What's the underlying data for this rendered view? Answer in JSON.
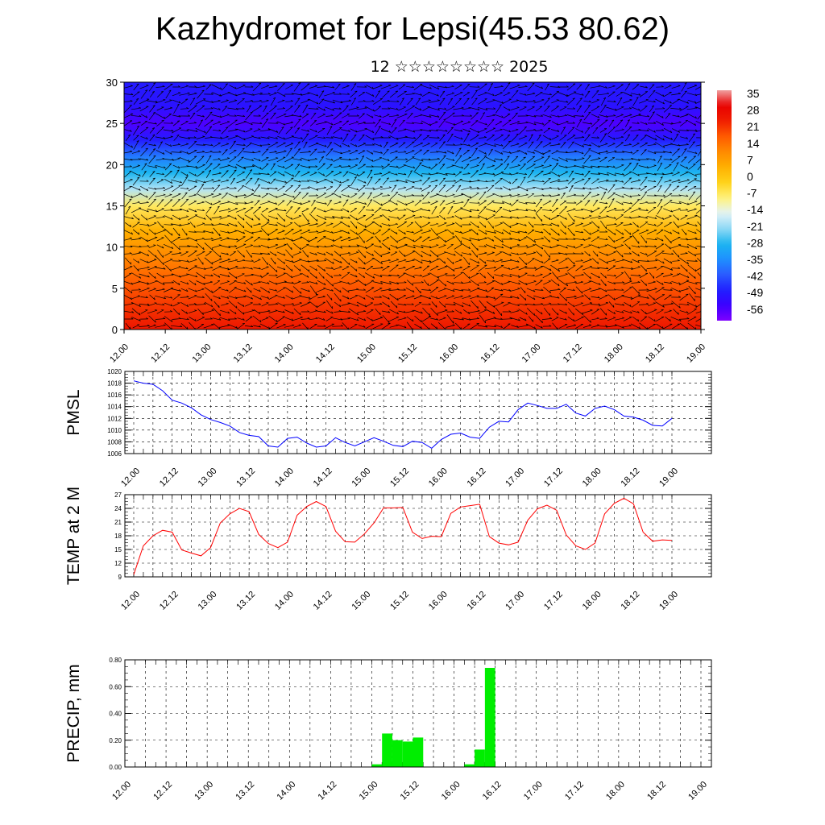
{
  "header": {
    "title": "Kazhydromet for Lepsi(45.53 80.62)",
    "subtitle": "12 ☆☆☆☆☆☆☆☆ 2025"
  },
  "colors": {
    "pmsl_line": "#0000ff",
    "temp_line": "#ff0000",
    "precip_bar": "#00ee00",
    "grid": "#000000",
    "wind_arrows": "#000000"
  },
  "chart_data": [
    {
      "id": "temperature_profile",
      "type": "heatmap",
      "description_fill": "temperature cross-section with wind vectors",
      "y_ticks": [
        "0",
        "5",
        "10",
        "15",
        "20",
        "25",
        "30"
      ],
      "ylim": [
        0,
        30
      ],
      "x_ticks": [
        "12.00",
        "12.12",
        "13.00",
        "13.12",
        "14.00",
        "14.12",
        "15.00",
        "15.12",
        "16.00",
        "16.12",
        "17.00",
        "17.12",
        "18.00",
        "18.12",
        "19.00"
      ],
      "colorbar_labels": [
        "35",
        "28",
        "21",
        "14",
        "7",
        "0",
        "-7",
        "-14",
        "-21",
        "-28",
        "-35",
        "-42",
        "-49",
        "-56"
      ],
      "colorbar_range": [
        -63,
        42
      ],
      "profile": [
        {
          "level": 0,
          "temp": 30
        },
        {
          "level": 3,
          "temp": 25
        },
        {
          "level": 6,
          "temp": 20
        },
        {
          "level": 9,
          "temp": 14
        },
        {
          "level": 12,
          "temp": 7
        },
        {
          "level": 15,
          "temp": -5
        },
        {
          "level": 17,
          "temp": -18
        },
        {
          "level": 19,
          "temp": -28
        },
        {
          "level": 21,
          "temp": -38
        },
        {
          "level": 23,
          "temp": -50
        },
        {
          "level": 25,
          "temp": -58
        },
        {
          "level": 27,
          "temp": -52
        },
        {
          "level": 30,
          "temp": -50
        }
      ]
    },
    {
      "id": "pmsl",
      "type": "line",
      "ylabel": "PMSL",
      "ylim": [
        1006,
        1020
      ],
      "y_ticks": [
        "1020",
        "1018",
        "1016",
        "1014",
        "1012",
        "1010",
        "1008",
        "1006"
      ],
      "x_ticks": [
        "12.00",
        "12.12",
        "13.00",
        "13.12",
        "14.00",
        "14.12",
        "15.00",
        "15.12",
        "16.00",
        "16.12",
        "17.00",
        "17.12",
        "18.00",
        "18.12",
        "19.00"
      ],
      "x_step_hours": 3,
      "values": [
        1018.4,
        1018.0,
        1017.8,
        1016.7,
        1015.1,
        1014.6,
        1013.8,
        1012.6,
        1011.8,
        1011.3,
        1010.7,
        1009.6,
        1009.1,
        1008.9,
        1007.3,
        1007.1,
        1008.6,
        1008.8,
        1007.8,
        1007.1,
        1007.3,
        1008.7,
        1007.9,
        1007.3,
        1008.0,
        1008.7,
        1008.1,
        1007.4,
        1007.2,
        1008.1,
        1007.9,
        1006.9,
        1008.4,
        1009.3,
        1009.5,
        1008.8,
        1008.6,
        1010.5,
        1011.5,
        1011.4,
        1013.5,
        1014.6,
        1014.2,
        1013.7,
        1013.7,
        1014.4,
        1012.9,
        1012.4,
        1013.7,
        1014.1,
        1013.5,
        1012.4,
        1012.2,
        1011.7,
        1010.8,
        1010.7,
        1012.0
      ]
    },
    {
      "id": "temp2m",
      "type": "line",
      "ylabel": "TEMP at 2 M",
      "ylim": [
        9,
        27
      ],
      "y_ticks": [
        "27",
        "24",
        "21",
        "18",
        "15",
        "12",
        "9"
      ],
      "x_ticks": [
        "12.00",
        "12.12",
        "13.00",
        "13.12",
        "14.00",
        "14.12",
        "15.00",
        "15.12",
        "16.00",
        "16.12",
        "17.00",
        "17.12",
        "18.00",
        "18.12",
        "19.00"
      ],
      "x_step_hours": 3,
      "values": [
        9.5,
        15.8,
        18.0,
        19.2,
        18.8,
        14.9,
        14.2,
        13.6,
        15.4,
        20.8,
        22.8,
        24.0,
        23.3,
        18.3,
        16.3,
        15.4,
        16.6,
        22.5,
        24.4,
        25.5,
        24.4,
        19.0,
        16.7,
        16.6,
        18.4,
        20.8,
        24.1,
        24.1,
        24.2,
        18.8,
        17.4,
        17.9,
        17.8,
        22.9,
        24.3,
        24.6,
        24.9,
        17.8,
        16.4,
        16.0,
        16.6,
        21.4,
        23.9,
        24.7,
        23.6,
        18.2,
        15.8,
        15.0,
        16.4,
        22.8,
        25.1,
        26.2,
        25.0,
        18.8,
        16.8,
        17.1,
        17.0
      ]
    },
    {
      "id": "precip",
      "type": "bar",
      "ylabel": "PRECIP, mm",
      "ylim": [
        0,
        0.8
      ],
      "y_ticks": [
        "0.80",
        "0.60",
        "0.40",
        "0.20",
        "0.00"
      ],
      "x_ticks": [
        "12.00",
        "12.12",
        "13.00",
        "13.12",
        "14.00",
        "14.12",
        "15.00",
        "15.12",
        "16.00",
        "16.12",
        "17.00",
        "17.12",
        "18.00",
        "18.12",
        "19.00"
      ],
      "x_step_hours": 3,
      "values": [
        0,
        0,
        0,
        0,
        0,
        0,
        0,
        0,
        0,
        0,
        0,
        0,
        0,
        0,
        0,
        0,
        0,
        0,
        0,
        0,
        0,
        0,
        0,
        0,
        0.02,
        0.25,
        0.2,
        0.19,
        0.22,
        0,
        0,
        0,
        0,
        0.02,
        0.13,
        0.74,
        0,
        0,
        0,
        0,
        0,
        0,
        0,
        0,
        0,
        0,
        0,
        0,
        0,
        0,
        0,
        0,
        0,
        0,
        0,
        0
      ]
    }
  ]
}
